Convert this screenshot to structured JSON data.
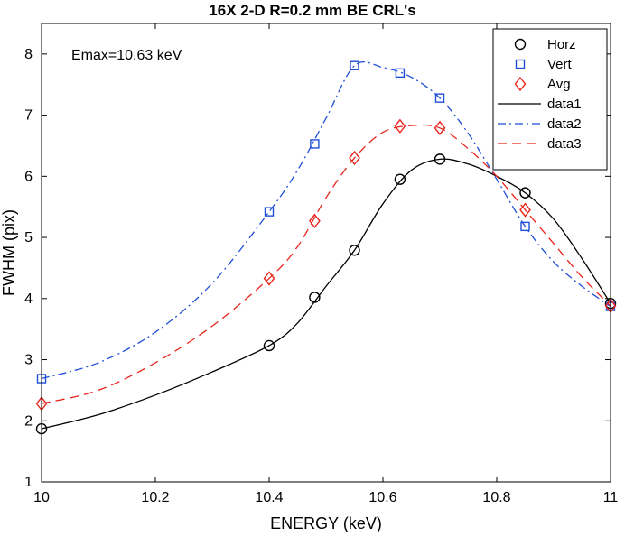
{
  "chart_data": {
    "type": "line",
    "title": "16X 2-D R=0.2 mm BE CRL's",
    "xlabel": "ENERGY (keV)",
    "ylabel": "FWHM (pix)",
    "xlim": [
      10,
      11
    ],
    "ylim": [
      1,
      8.5
    ],
    "xticks": [
      "10",
      "10.2",
      "10.4",
      "10.6",
      "10.8",
      "11"
    ],
    "yticks": [
      "1",
      "2",
      "3",
      "4",
      "5",
      "6",
      "7",
      "8"
    ],
    "annotation": "Emax=10.63 keV",
    "grid": false,
    "legend_position": "top-right",
    "marker_series": [
      {
        "name": "Horz",
        "marker": "circle",
        "color": "#000000",
        "x": [
          10,
          10.4,
          10.48,
          10.55,
          10.63,
          10.7,
          10.85,
          11
        ],
        "y": [
          1.87,
          3.23,
          4.02,
          4.79,
          5.95,
          6.28,
          5.73,
          3.92
        ]
      },
      {
        "name": "Vert",
        "marker": "square",
        "color": "#1f4fd8",
        "x": [
          10,
          10.4,
          10.48,
          10.55,
          10.63,
          10.7,
          10.85,
          11
        ],
        "y": [
          2.69,
          5.42,
          6.53,
          7.81,
          7.69,
          7.28,
          5.18,
          3.87
        ]
      },
      {
        "name": "Avg",
        "marker": "diamond",
        "color": "#e8241b",
        "x": [
          10,
          10.4,
          10.48,
          10.55,
          10.63,
          10.7,
          10.85,
          11
        ],
        "y": [
          2.28,
          4.33,
          5.27,
          6.3,
          6.82,
          6.79,
          5.45,
          3.88
        ]
      }
    ],
    "fit_series": [
      {
        "name": "data1",
        "style": "solid",
        "color": "#000000",
        "x": [
          10,
          10.1,
          10.2,
          10.3,
          10.4,
          10.45,
          10.5,
          10.55,
          10.6,
          10.65,
          10.7,
          10.75,
          10.8,
          10.85,
          10.9,
          10.95,
          11
        ],
        "y": [
          1.87,
          2.1,
          2.42,
          2.8,
          3.23,
          3.6,
          4.2,
          4.79,
          5.55,
          6.1,
          6.28,
          6.2,
          6.0,
          5.73,
          5.3,
          4.65,
          3.92
        ]
      },
      {
        "name": "data2",
        "style": "dashdot",
        "color": "#1f4fd8",
        "x": [
          10,
          10.1,
          10.2,
          10.3,
          10.4,
          10.45,
          10.5,
          10.55,
          10.6,
          10.65,
          10.7,
          10.75,
          10.8,
          10.85,
          10.9,
          10.95,
          11
        ],
        "y": [
          2.69,
          2.95,
          3.45,
          4.25,
          5.42,
          6.1,
          6.95,
          7.81,
          7.78,
          7.62,
          7.28,
          6.7,
          5.95,
          5.18,
          4.6,
          4.2,
          3.87
        ]
      },
      {
        "name": "data3",
        "style": "dashed",
        "color": "#e8241b",
        "x": [
          10,
          10.1,
          10.2,
          10.3,
          10.4,
          10.45,
          10.5,
          10.55,
          10.6,
          10.65,
          10.7,
          10.75,
          10.8,
          10.85,
          10.9,
          10.95,
          11
        ],
        "y": [
          2.28,
          2.5,
          2.95,
          3.55,
          4.33,
          4.85,
          5.65,
          6.3,
          6.72,
          6.83,
          6.79,
          6.45,
          6.0,
          5.45,
          4.9,
          4.35,
          3.88
        ]
      }
    ]
  }
}
